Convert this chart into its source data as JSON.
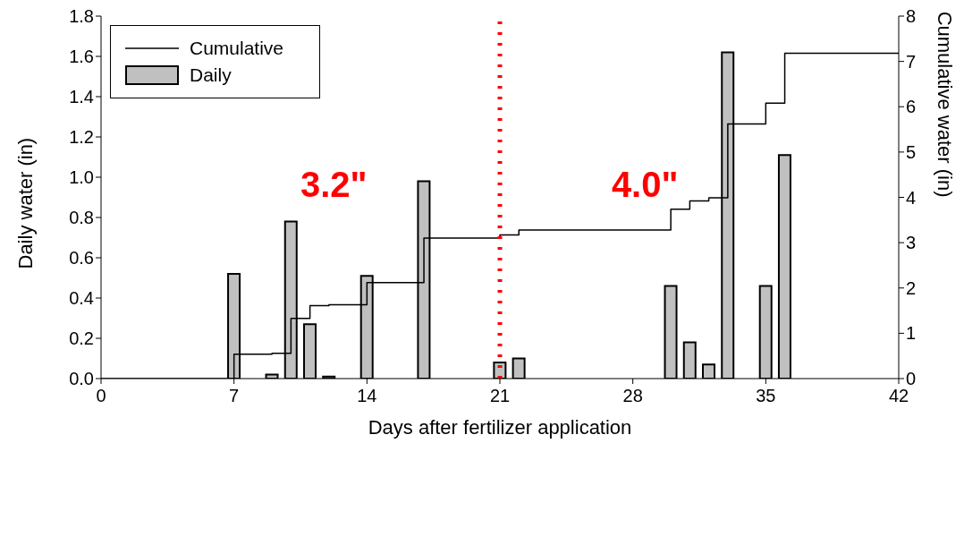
{
  "chart_data": {
    "type": "bar",
    "xlabel": "Days after fertilizer application",
    "ylabel": "Daily water (in)",
    "y2label": "Cumulative water (in)",
    "xlim": [
      0,
      42
    ],
    "xticks": [
      0,
      7,
      14,
      21,
      28,
      35,
      42
    ],
    "ylim": [
      0,
      1.8
    ],
    "yticks": [
      {
        "value": 0,
        "label": "0.0"
      },
      {
        "value": 0.2,
        "label": "0.2"
      },
      {
        "value": 0.4,
        "label": "0.4"
      },
      {
        "value": 0.6,
        "label": "0.6"
      },
      {
        "value": 0.8,
        "label": "0.8"
      },
      {
        "value": 1,
        "label": "1.0"
      },
      {
        "value": 1.2,
        "label": "1.2"
      },
      {
        "value": 1.4,
        "label": "1.4"
      },
      {
        "value": 1.6,
        "label": "1.6"
      },
      {
        "value": 1.8,
        "label": "1.8"
      }
    ],
    "y2lim": [
      0,
      8
    ],
    "y2ticks": [
      0,
      1,
      2,
      3,
      4,
      5,
      6,
      7,
      8
    ],
    "series": [
      {
        "name": "Cumulative",
        "type": "step",
        "axis": "y2",
        "color": "#000000",
        "x": [
          0,
          7,
          9,
          10,
          11,
          12,
          14,
          17,
          21,
          22,
          30,
          31,
          32,
          33,
          35,
          36,
          42
        ],
        "values": [
          0,
          0.54,
          0.56,
          1.33,
          1.61,
          1.63,
          2.12,
          3.1,
          3.17,
          3.28,
          3.74,
          3.92,
          3.99,
          5.62,
          6.08,
          7.18,
          7.18
        ]
      },
      {
        "name": "Daily",
        "color": "#c0c0c0",
        "x": [
          7,
          9,
          10,
          11,
          12,
          14,
          17,
          21,
          22,
          30,
          31,
          32,
          33,
          35,
          36
        ],
        "values": [
          0.52,
          0.02,
          0.78,
          0.27,
          0.01,
          0.51,
          0.98,
          0.08,
          0.1,
          0.46,
          0.18,
          0.07,
          1.62,
          0.46,
          1.11
        ]
      }
    ],
    "ref_lines": [
      {
        "axis": "x",
        "value": 21,
        "color": "#ff0000",
        "line_style": "dotted"
      }
    ],
    "annotations": [
      "3.2\"",
      "4.0\""
    ],
    "legend": "top left",
    "grid": false
  }
}
